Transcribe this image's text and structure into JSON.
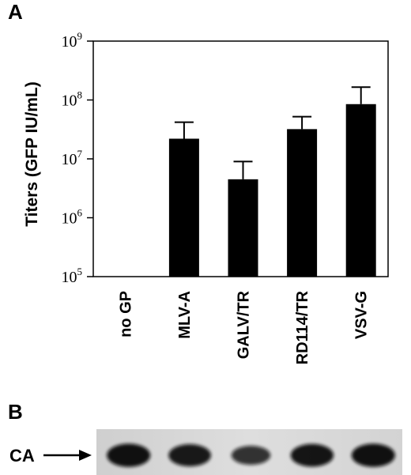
{
  "panels": {
    "a_label": "A",
    "b_label": "B"
  },
  "chart_data": {
    "type": "bar",
    "scale": "log",
    "ylabel": "Titers (GFP IU/mL)",
    "ylim": [
      100000,
      1000000000
    ],
    "yticks": [
      {
        "base": "10",
        "exp": "5",
        "value": 100000
      },
      {
        "base": "10",
        "exp": "6",
        "value": 1000000
      },
      {
        "base": "10",
        "exp": "7",
        "value": 10000000
      },
      {
        "base": "10",
        "exp": "8",
        "value": 100000000
      },
      {
        "base": "10",
        "exp": "9",
        "value": 1000000000
      }
    ],
    "categories": [
      "no GP",
      "MLV-A",
      "GALV/TR",
      "RD114/TR",
      "VSV-G"
    ],
    "values": [
      null,
      22000000,
      4500000,
      32000000,
      85000000
    ],
    "error_upper": [
      null,
      42000000,
      9000000,
      52000000,
      165000000
    ],
    "bar_color": "#000000",
    "grid": false
  },
  "blot": {
    "band_label": "CA",
    "arrow_icon": "right-arrow-icon",
    "lanes": 5,
    "band_intensity": [
      0.95,
      0.85,
      0.55,
      0.9,
      0.95
    ],
    "background_color": "#d9d9d9",
    "band_color": "#111111"
  }
}
